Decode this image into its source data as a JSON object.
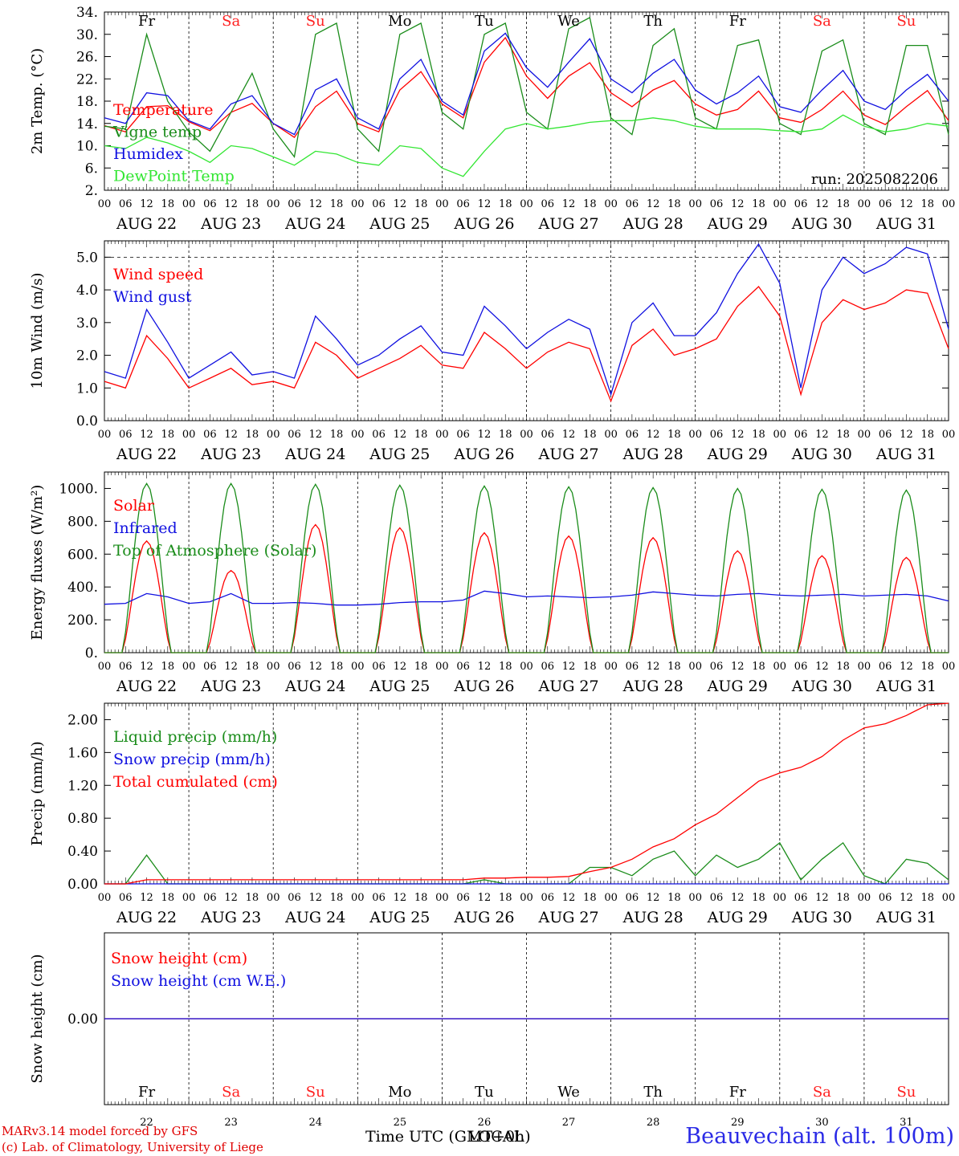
{
  "run_label": "run: 2025082206",
  "footer": {
    "credit_line1": "MARv3.14 model forced by GFS",
    "credit_line2": "(c) Lab. of Climatology, University of Liege",
    "station": "Beauvechain (alt. 100m)",
    "x_axis_title": "Time UTC (GMT+0h)",
    "x_axis_title_overlap": "LOCAL"
  },
  "colors": {
    "red": "#ff0000",
    "green": "#1a8c1a",
    "blue": "#1010e0",
    "lightgreen": "#33e633",
    "weekend": "#ff2020",
    "weekday": "#000000"
  },
  "days": [
    {
      "abbr": "Fr",
      "date": "AUG 22",
      "num": "22",
      "weekend": false
    },
    {
      "abbr": "Sa",
      "date": "AUG 23",
      "num": "23",
      "weekend": true
    },
    {
      "abbr": "Su",
      "date": "AUG 24",
      "num": "24",
      "weekend": true
    },
    {
      "abbr": "Mo",
      "date": "AUG 25",
      "num": "25",
      "weekend": false
    },
    {
      "abbr": "Tu",
      "date": "AUG 26",
      "num": "26",
      "weekend": false
    },
    {
      "abbr": "We",
      "date": "AUG 27",
      "num": "27",
      "weekend": false
    },
    {
      "abbr": "Th",
      "date": "AUG 28",
      "num": "28",
      "weekend": false
    },
    {
      "abbr": "Fr",
      "date": "AUG 29",
      "num": "29",
      "weekend": false
    },
    {
      "abbr": "Sa",
      "date": "AUG 30",
      "num": "30",
      "weekend": true
    },
    {
      "abbr": "Su",
      "date": "AUG 31",
      "num": "31",
      "weekend": true
    }
  ],
  "hour_ticks": [
    "00",
    "06",
    "12",
    "18"
  ],
  "chart_data": [
    {
      "id": "temp",
      "type": "line",
      "ylabel": "2m Temp. (°C)",
      "ylim": [
        2,
        34
      ],
      "yticks": [
        2,
        6,
        10,
        14,
        18,
        22,
        26,
        30,
        34
      ],
      "ytick_labels": [
        "2.",
        "6.",
        "10.",
        "14.",
        "18.",
        "22.",
        "26.",
        "30.",
        "34."
      ],
      "show_day_abbr": true,
      "x_start": "2025-08-22 00:00",
      "x_step_hours": 6,
      "series": [
        {
          "name": "Temperature",
          "color": "red",
          "values": [
            13.6,
            12.5,
            17,
            17.2,
            14.3,
            12.7,
            16,
            17.6,
            14,
            11.5,
            17,
            19.8,
            14,
            12.5,
            20,
            23.3,
            17.5,
            15,
            25,
            29.4,
            22.5,
            18.5,
            22.5,
            24.9,
            19.5,
            17,
            20,
            21.7,
            17.5,
            15.5,
            16.5,
            19.8,
            15,
            14.2,
            16.5,
            19.8,
            15.5,
            13.8,
            17,
            19.9,
            14.5
          ]
        },
        {
          "name": "Vigne temp",
          "color": "green",
          "values": [
            13.5,
            13,
            30,
            18,
            12.5,
            9,
            16,
            23,
            13,
            8,
            30,
            32,
            13,
            9,
            30,
            32,
            16,
            13,
            30,
            32,
            16,
            13,
            31,
            33,
            15,
            12,
            28,
            31,
            15,
            13,
            28,
            29,
            14,
            12,
            27,
            29,
            14,
            12,
            28,
            28,
            12
          ]
        },
        {
          "name": "Humidex",
          "color": "blue",
          "values": [
            15,
            14,
            19.5,
            19,
            14.5,
            13,
            17.5,
            19,
            14,
            12,
            20,
            22,
            15,
            13,
            22,
            25.5,
            18,
            15.5,
            27,
            30.2,
            24,
            20.5,
            25,
            29.2,
            22,
            19.5,
            23,
            25.5,
            20,
            17.5,
            19.5,
            22.5,
            17,
            16,
            20,
            23.5,
            18,
            16.5,
            20,
            22.8,
            18
          ]
        },
        {
          "name": "DewPoint Temp",
          "color": "lightgreen",
          "values": [
            10,
            9.5,
            11.5,
            10.5,
            9,
            7,
            10,
            9.5,
            8,
            6.5,
            9,
            8.5,
            7,
            6.5,
            10,
            9.5,
            6,
            4.5,
            9,
            13,
            14,
            13,
            13.5,
            14.2,
            14.5,
            14.5,
            15,
            14.5,
            13.5,
            13,
            13,
            13,
            12.7,
            12.5,
            13,
            15.5,
            13.5,
            12.5,
            13,
            14,
            13.5
          ]
        }
      ],
      "legend": [
        "Temperature",
        "Vigne temp",
        "Humidex",
        "DewPoint Temp"
      ],
      "legend_placement": "left",
      "annotation": "run: 2025082206"
    },
    {
      "id": "wind",
      "type": "line",
      "ylabel": "10m Wind (m/s)",
      "ylim": [
        0,
        5.5
      ],
      "yticks": [
        0,
        1,
        2,
        3,
        4,
        5
      ],
      "ytick_labels": [
        "0.0",
        "1.0",
        "2.0",
        "3.0",
        "4.0",
        "5.0"
      ],
      "reference_line": 5.0,
      "x_start": "2025-08-22 00:00",
      "x_step_hours": 6,
      "series": [
        {
          "name": "Wind speed",
          "color": "red",
          "values": [
            1.2,
            1.0,
            2.6,
            1.9,
            1.0,
            1.3,
            1.6,
            1.1,
            1.2,
            1.0,
            2.4,
            2.0,
            1.3,
            1.6,
            1.9,
            2.3,
            1.7,
            1.6,
            2.7,
            2.2,
            1.6,
            2.1,
            2.4,
            2.2,
            0.6,
            2.3,
            2.8,
            2.0,
            2.2,
            2.5,
            3.5,
            4.1,
            3.2,
            0.8,
            3.0,
            3.7,
            3.4,
            3.6,
            4.0,
            3.9,
            2.2
          ]
        },
        {
          "name": "Wind gust",
          "color": "blue",
          "values": [
            1.5,
            1.3,
            3.4,
            2.4,
            1.3,
            1.7,
            2.1,
            1.4,
            1.5,
            1.3,
            3.2,
            2.5,
            1.7,
            2.0,
            2.5,
            2.9,
            2.1,
            2.0,
            3.5,
            2.9,
            2.2,
            2.7,
            3.1,
            2.8,
            0.8,
            3.0,
            3.6,
            2.6,
            2.6,
            3.3,
            4.5,
            5.4,
            4.2,
            1.0,
            4.0,
            5.0,
            4.5,
            4.8,
            5.3,
            5.1,
            2.8
          ]
        }
      ],
      "legend": [
        "Wind speed",
        "Wind gust"
      ],
      "legend_placement": "left"
    },
    {
      "id": "energy",
      "type": "line",
      "ylabel": "Energy fluxes (W/m²)",
      "ylim": [
        0,
        1100
      ],
      "yticks": [
        0,
        200,
        400,
        600,
        800,
        1000
      ],
      "ytick_labels": [
        "0.",
        "200.",
        "400.",
        "600.",
        "800.",
        "1000."
      ],
      "x_start": "2025-08-22 00:00",
      "x_step_hours": 6,
      "series": [
        {
          "name": "Solar",
          "color": "red",
          "peaks": [
            680,
            500,
            780,
            760,
            730,
            710,
            700,
            620,
            590,
            580
          ]
        },
        {
          "name": "Infrared",
          "color": "blue",
          "values": [
            295,
            300,
            360,
            340,
            300,
            310,
            360,
            300,
            300,
            305,
            300,
            290,
            290,
            295,
            305,
            310,
            310,
            320,
            375,
            360,
            340,
            345,
            340,
            335,
            340,
            350,
            370,
            360,
            350,
            345,
            355,
            360,
            350,
            345,
            350,
            355,
            345,
            350,
            355,
            345,
            315
          ]
        },
        {
          "name": "Top of Atmosphere (Solar)",
          "color": "green",
          "peaks": [
            1030,
            1030,
            1025,
            1020,
            1015,
            1010,
            1005,
            1000,
            995,
            990
          ]
        }
      ],
      "legend": [
        "Solar",
        "Infrared",
        "Top of Atmosphere (Solar)"
      ],
      "legend_placement": "left"
    },
    {
      "id": "precip",
      "type": "line",
      "ylabel": "Precip (mm/h)",
      "ylim": [
        0,
        2.2
      ],
      "yticks": [
        0,
        0.4,
        0.8,
        1.2,
        1.6,
        2.0
      ],
      "ytick_labels": [
        "0.00",
        "0.40",
        "0.80",
        "1.20",
        "1.60",
        "2.00"
      ],
      "x_start": "2025-08-22 00:00",
      "x_step_hours": 6,
      "series": [
        {
          "name": "Liquid precip (mm/h)",
          "color": "green",
          "values": [
            0,
            0,
            0.35,
            0,
            0,
            0,
            0,
            0,
            0,
            0,
            0,
            0,
            0,
            0,
            0,
            0,
            0,
            0,
            0.05,
            0,
            0,
            0,
            0,
            0.2,
            0.2,
            0.1,
            0.3,
            0.4,
            0.1,
            0.35,
            0.2,
            0.3,
            0.5,
            0.05,
            0.3,
            0.5,
            0.1,
            0,
            0.3,
            0.25,
            0.05
          ]
        },
        {
          "name": "Snow precip (mm/h)",
          "color": "blue",
          "values": [
            0,
            0,
            0,
            0,
            0,
            0,
            0,
            0,
            0,
            0,
            0,
            0,
            0,
            0,
            0,
            0,
            0,
            0,
            0,
            0,
            0,
            0,
            0,
            0,
            0,
            0,
            0,
            0,
            0,
            0,
            0,
            0,
            0,
            0,
            0,
            0,
            0,
            0,
            0,
            0,
            0
          ]
        },
        {
          "name": "Total cumulated (cm)",
          "color": "red",
          "values": [
            0,
            0,
            0.05,
            0.05,
            0.05,
            0.05,
            0.05,
            0.05,
            0.05,
            0.05,
            0.05,
            0.05,
            0.05,
            0.05,
            0.05,
            0.05,
            0.05,
            0.05,
            0.07,
            0.07,
            0.08,
            0.08,
            0.09,
            0.15,
            0.2,
            0.3,
            0.45,
            0.55,
            0.72,
            0.85,
            1.05,
            1.25,
            1.35,
            1.42,
            1.55,
            1.75,
            1.9,
            1.95,
            2.05,
            2.18,
            2.2
          ]
        }
      ],
      "legend": [
        "Liquid precip (mm/h)",
        "Snow precip (mm/h)",
        "Total cumulated (cm)"
      ],
      "legend_placement": "left"
    },
    {
      "id": "snow",
      "type": "line",
      "ylabel": "Snow height (cm)",
      "ylim": [
        -1,
        1
      ],
      "yticks": [
        0
      ],
      "ytick_labels": [
        "0.00"
      ],
      "x_start": "2025-08-22 00:00",
      "x_step_hours": 6,
      "series": [
        {
          "name": "Snow height (cm)",
          "color": "red",
          "values": [
            0,
            0
          ]
        },
        {
          "name": "Snow height (cm W.E.)",
          "color": "blue",
          "values": [
            0,
            0
          ]
        }
      ],
      "legend": [
        "Snow height (cm)",
        "Snow height (cm W.E.)"
      ],
      "legend_placement": "left"
    }
  ]
}
